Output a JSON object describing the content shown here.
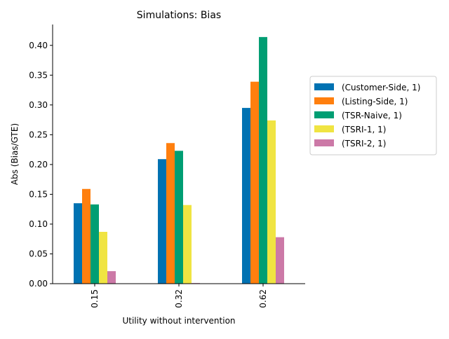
{
  "chart_data": {
    "type": "bar",
    "title": "Simulations: Bias",
    "xlabel": "Utility without intervention",
    "ylabel": "Abs (Bias/GTE)",
    "categories": [
      "0.15",
      "0.32",
      "0.62"
    ],
    "ylim": [
      0,
      0.435
    ],
    "yticks": [
      "0.00",
      "0.05",
      "0.10",
      "0.15",
      "0.20",
      "0.25",
      "0.30",
      "0.35",
      "0.40"
    ],
    "grid": false,
    "legend_position": "right",
    "series": [
      {
        "name": "(Customer-Side, 1)",
        "color": "#0072B2",
        "values": [
          0.135,
          0.209,
          0.295
        ]
      },
      {
        "name": "(Listing-Side, 1)",
        "color": "#FF7F0E",
        "values": [
          0.159,
          0.236,
          0.339
        ]
      },
      {
        "name": "(TSR-Naive, 1)",
        "color": "#009E73",
        "values": [
          0.133,
          0.223,
          0.414
        ]
      },
      {
        "name": "(TSRI-1, 1)",
        "color": "#F0E442",
        "values": [
          0.087,
          0.132,
          0.274
        ]
      },
      {
        "name": "(TSRI-2, 1)",
        "color": "#CC79A7",
        "values": [
          0.021,
          0.001,
          0.078
        ]
      }
    ]
  }
}
